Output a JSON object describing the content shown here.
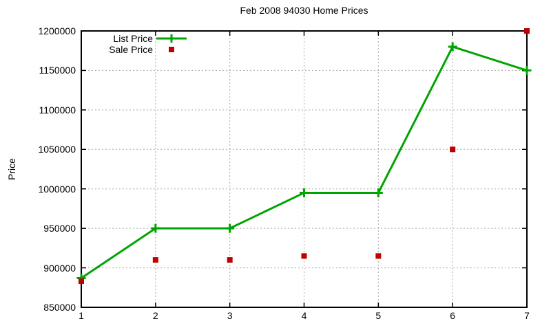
{
  "chart_data": {
    "type": "line",
    "title": "Feb 2008 94030 Home Prices",
    "xlabel": "",
    "ylabel": "Price",
    "x": [
      1,
      2,
      3,
      4,
      5,
      6,
      7
    ],
    "xticks": [
      1,
      2,
      3,
      4,
      5,
      6,
      7
    ],
    "xlim": [
      1,
      7
    ],
    "yticks": [
      850000,
      900000,
      950000,
      1000000,
      1050000,
      1100000,
      1150000,
      1200000
    ],
    "ylim": [
      850000,
      1200000
    ],
    "grid": true,
    "legend_position": "top-left-inside",
    "series": [
      {
        "name": "List Price",
        "marker": "plus",
        "style": "line-with-markers",
        "color": "#00a400",
        "values": [
          887000,
          950000,
          950000,
          995000,
          995000,
          1180000,
          1150000
        ]
      },
      {
        "name": "Sale Price",
        "marker": "filled-square",
        "style": "points-only",
        "color": "#c00000",
        "values": [
          883000,
          910000,
          910000,
          915000,
          915000,
          1050000,
          1200000
        ]
      }
    ]
  },
  "colors": {
    "background": "#ffffff",
    "axis": "#000000",
    "grid": "#a8a8a8",
    "list_price": "#00a400",
    "sale_price": "#c00000"
  }
}
